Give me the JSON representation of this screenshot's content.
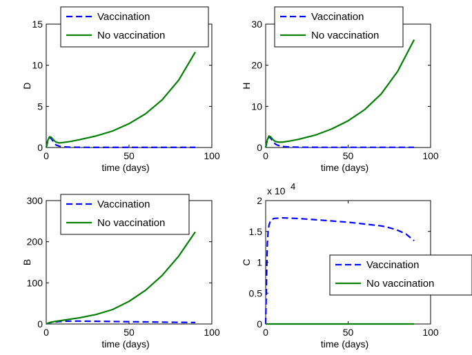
{
  "chart_data": [
    {
      "type": "line",
      "xlabel": "time (days)",
      "ylabel": "D",
      "xlim": [
        0,
        100
      ],
      "ylim": [
        0,
        15
      ],
      "xticks": [
        "0",
        "50",
        "100"
      ],
      "yticks": [
        "0",
        "5",
        "10",
        "15"
      ],
      "legend_position": "top",
      "series": [
        {
          "name": "Vaccination",
          "color": "#0000ff",
          "style": "dashed",
          "x": [
            0,
            1,
            2,
            3,
            4,
            5,
            6,
            8,
            10,
            15,
            20,
            30,
            40,
            50,
            60,
            70,
            80,
            90
          ],
          "y": [
            0,
            0.8,
            1.2,
            1.1,
            0.8,
            0.5,
            0.3,
            0.15,
            0.08,
            0.04,
            0.03,
            0.02,
            0.02,
            0.02,
            0.02,
            0.02,
            0.02,
            0.02
          ]
        },
        {
          "name": "No vaccination",
          "color": "#007f00",
          "style": "solid",
          "x": [
            0,
            1,
            2,
            3,
            4,
            5,
            6,
            8,
            10,
            15,
            20,
            30,
            40,
            50,
            60,
            70,
            80,
            90
          ],
          "y": [
            0,
            0.9,
            1.3,
            1.25,
            1.0,
            0.8,
            0.65,
            0.55,
            0.6,
            0.75,
            0.95,
            1.4,
            2.0,
            2.9,
            4.1,
            5.8,
            8.2,
            11.6
          ]
        }
      ]
    },
    {
      "type": "line",
      "xlabel": "time (days)",
      "ylabel": "H",
      "xlim": [
        0,
        100
      ],
      "ylim": [
        0,
        30
      ],
      "xticks": [
        "0",
        "50",
        "100"
      ],
      "yticks": [
        "0",
        "10",
        "20",
        "30"
      ],
      "legend_position": "top-right",
      "series": [
        {
          "name": "Vaccination",
          "color": "#0000ff",
          "style": "dashed",
          "x": [
            0,
            1,
            2,
            3,
            4,
            5,
            6,
            8,
            10,
            15,
            20,
            30,
            40,
            50,
            60,
            70,
            80,
            90
          ],
          "y": [
            0,
            1.8,
            2.6,
            2.3,
            1.7,
            1.2,
            0.8,
            0.45,
            0.25,
            0.12,
            0.08,
            0.06,
            0.05,
            0.05,
            0.05,
            0.05,
            0.05,
            0.05
          ]
        },
        {
          "name": "No vaccination",
          "color": "#007f00",
          "style": "solid",
          "x": [
            0,
            1,
            2,
            3,
            4,
            5,
            6,
            8,
            10,
            15,
            20,
            30,
            40,
            50,
            60,
            70,
            80,
            90
          ],
          "y": [
            0,
            1.9,
            2.8,
            2.6,
            2.1,
            1.7,
            1.45,
            1.3,
            1.3,
            1.6,
            2.0,
            3.0,
            4.5,
            6.5,
            9.2,
            13.0,
            18.5,
            26.2
          ]
        }
      ]
    },
    {
      "type": "line",
      "xlabel": "time (days)",
      "ylabel": "B",
      "xlim": [
        0,
        100
      ],
      "ylim": [
        0,
        300
      ],
      "xticks": [
        "0",
        "50",
        "100"
      ],
      "yticks": [
        "0",
        "100",
        "200",
        "300"
      ],
      "legend_position": "top",
      "series": [
        {
          "name": "Vaccination",
          "color": "#0000ff",
          "style": "dashed",
          "x": [
            0,
            2,
            5,
            10,
            15,
            20,
            30,
            40,
            50,
            60,
            70,
            80,
            90
          ],
          "y": [
            0,
            3,
            5,
            6.5,
            7,
            7,
            6.5,
            6,
            5.5,
            5,
            4.5,
            4,
            3.5
          ]
        },
        {
          "name": "No vaccination",
          "color": "#007f00",
          "style": "solid",
          "x": [
            0,
            2,
            5,
            10,
            15,
            20,
            30,
            40,
            50,
            60,
            70,
            80,
            90
          ],
          "y": [
            0,
            3.5,
            6,
            9,
            12,
            15,
            23,
            35,
            55,
            82,
            118,
            165,
            224
          ]
        }
      ]
    },
    {
      "type": "line",
      "xlabel": "time (days)",
      "ylabel": "C",
      "xlim": [
        0,
        100
      ],
      "ylim": [
        0,
        2
      ],
      "xticks": [
        "0",
        "50",
        "100"
      ],
      "yticks": [
        "0",
        "0.5",
        "1",
        "1.5",
        "2"
      ],
      "y_multiplier": "x 10",
      "y_multiplier_exp": "4",
      "legend_position": "middle-right",
      "series": [
        {
          "name": "Vaccination",
          "color": "#0000ff",
          "style": "dashed",
          "x": [
            0,
            0.5,
            1,
            1.5,
            2,
            3,
            5,
            10,
            20,
            30,
            40,
            50,
            60,
            70,
            75,
            80,
            85,
            90
          ],
          "y": [
            0,
            0.7,
            1.3,
            1.5,
            1.6,
            1.68,
            1.71,
            1.72,
            1.71,
            1.69,
            1.67,
            1.65,
            1.62,
            1.59,
            1.56,
            1.52,
            1.46,
            1.35
          ]
        },
        {
          "name": "No vaccination",
          "color": "#007f00",
          "style": "solid",
          "x": [
            0,
            90
          ],
          "y": [
            0,
            0
          ]
        }
      ]
    }
  ]
}
